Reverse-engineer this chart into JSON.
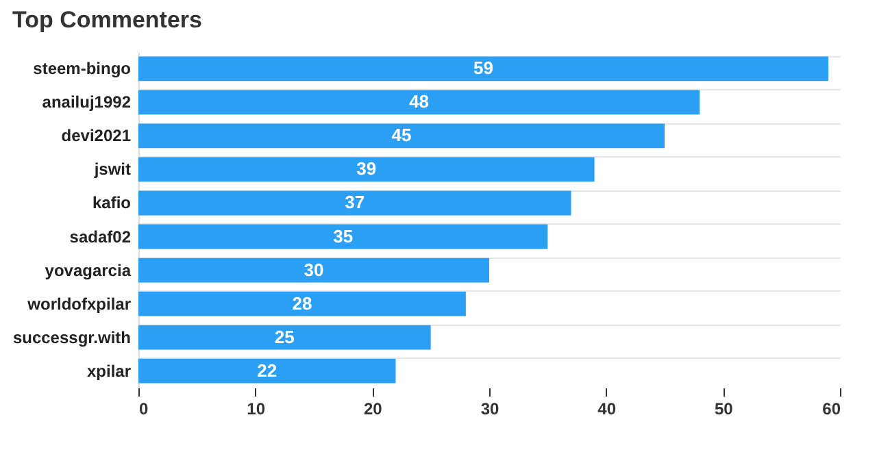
{
  "chart_data": {
    "type": "bar",
    "orientation": "horizontal",
    "title": "Top Commenters",
    "categories": [
      "steem-bingo",
      "anailuj1992",
      "devi2021",
      "jswit",
      "kafio",
      "sadaf02",
      "yovagarcia",
      "worldofxpilar",
      "successgr.with",
      "xpilar"
    ],
    "values": [
      59,
      48,
      45,
      39,
      37,
      35,
      30,
      28,
      25,
      22
    ],
    "color": "#2b9ff4",
    "xlim": [
      0,
      60
    ],
    "xticks": [
      0,
      10,
      20,
      30,
      40,
      50,
      60
    ],
    "grid": "y",
    "data_labels": true
  }
}
